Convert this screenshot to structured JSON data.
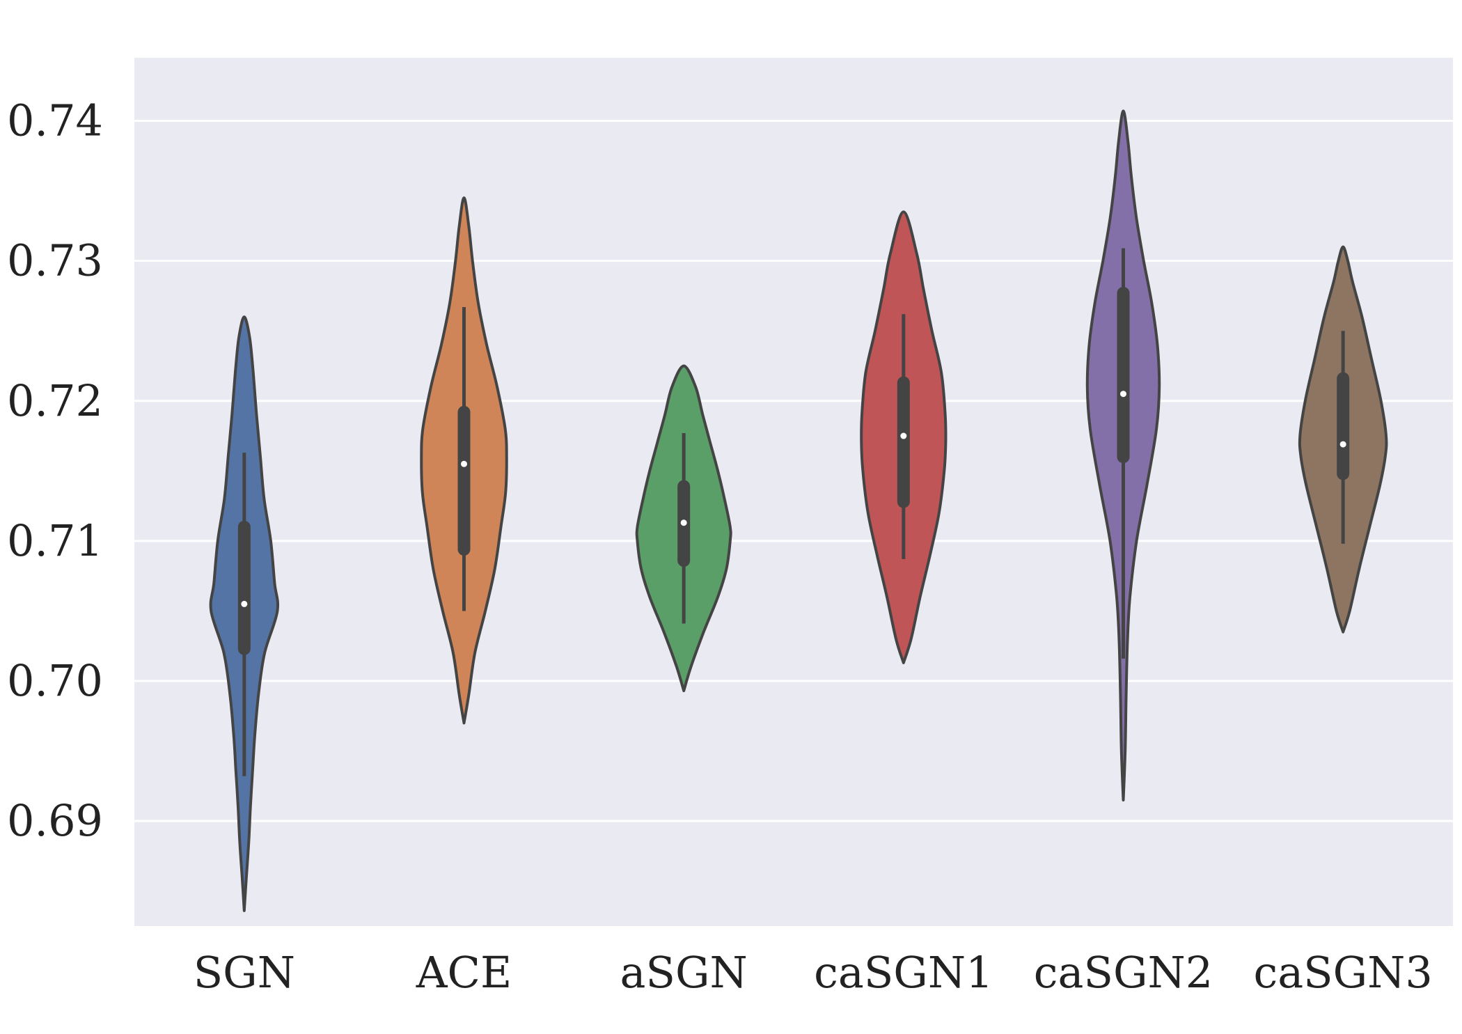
{
  "chart_data": {
    "type": "violin",
    "title": "",
    "xlabel": "",
    "ylabel": "",
    "ylim": [
      0.6825,
      0.7445
    ],
    "grid": true,
    "yticks": [
      {
        "value": 0.69,
        "label": "0.69"
      },
      {
        "value": 0.7,
        "label": "0.70"
      },
      {
        "value": 0.71,
        "label": "0.71"
      },
      {
        "value": 0.72,
        "label": "0.72"
      },
      {
        "value": 0.73,
        "label": "0.73"
      },
      {
        "value": 0.74,
        "label": "0.74"
      }
    ],
    "categories": [
      "SGN",
      "ACE",
      "aSGN",
      "caSGN1",
      "caSGN2",
      "caSGN3"
    ],
    "colors": [
      "#5574a6",
      "#cf8557",
      "#5a9e68",
      "#c05558",
      "#8470a8",
      "#8d7562"
    ],
    "series": [
      {
        "name": "SGN",
        "whisker": [
          0.6932,
          0.7163
        ],
        "box": [
          0.7023,
          0.711
        ],
        "median": 0.7055,
        "density": [
          [
            0.6836,
            0.0
          ],
          [
            0.686,
            0.045
          ],
          [
            0.6885,
            0.095
          ],
          [
            0.691,
            0.13
          ],
          [
            0.6935,
            0.175
          ],
          [
            0.696,
            0.22
          ],
          [
            0.699,
            0.3
          ],
          [
            0.702,
            0.43
          ],
          [
            0.705,
            0.7
          ],
          [
            0.707,
            0.64
          ],
          [
            0.71,
            0.56
          ],
          [
            0.713,
            0.42
          ],
          [
            0.716,
            0.34
          ],
          [
            0.719,
            0.26
          ],
          [
            0.722,
            0.19
          ],
          [
            0.7245,
            0.115
          ],
          [
            0.726,
            0.0
          ]
        ]
      },
      {
        "name": "ACE",
        "whisker": [
          0.705,
          0.7267
        ],
        "box": [
          0.7094,
          0.7192
        ],
        "median": 0.7155,
        "density": [
          [
            0.697,
            0.0
          ],
          [
            0.699,
            0.1
          ],
          [
            0.702,
            0.23
          ],
          [
            0.705,
            0.45
          ],
          [
            0.708,
            0.65
          ],
          [
            0.711,
            0.78
          ],
          [
            0.7135,
            0.88
          ],
          [
            0.716,
            0.9
          ],
          [
            0.718,
            0.87
          ],
          [
            0.721,
            0.7
          ],
          [
            0.724,
            0.48
          ],
          [
            0.727,
            0.3
          ],
          [
            0.73,
            0.18
          ],
          [
            0.7325,
            0.1
          ],
          [
            0.7345,
            0.0
          ]
        ]
      },
      {
        "name": "aSGN",
        "whisker": [
          0.7041,
          0.7177
        ],
        "box": [
          0.7086,
          0.7139
        ],
        "median": 0.7113,
        "density": [
          [
            0.6993,
            0.0
          ],
          [
            0.701,
            0.15
          ],
          [
            0.7035,
            0.42
          ],
          [
            0.706,
            0.72
          ],
          [
            0.708,
            0.9
          ],
          [
            0.71,
            0.98
          ],
          [
            0.711,
            0.98
          ],
          [
            0.713,
            0.86
          ],
          [
            0.715,
            0.72
          ],
          [
            0.717,
            0.56
          ],
          [
            0.719,
            0.4
          ],
          [
            0.721,
            0.25
          ],
          [
            0.7225,
            0.0
          ]
        ]
      },
      {
        "name": "caSGN1",
        "whisker": [
          0.7087,
          0.7262
        ],
        "box": [
          0.7128,
          0.7213
        ],
        "median": 0.7175,
        "density": [
          [
            0.7013,
            0.0
          ],
          [
            0.703,
            0.16
          ],
          [
            0.706,
            0.35
          ],
          [
            0.709,
            0.56
          ],
          [
            0.712,
            0.75
          ],
          [
            0.715,
            0.86
          ],
          [
            0.717,
            0.89
          ],
          [
            0.719,
            0.88
          ],
          [
            0.722,
            0.8
          ],
          [
            0.725,
            0.6
          ],
          [
            0.728,
            0.42
          ],
          [
            0.7305,
            0.28
          ],
          [
            0.7335,
            0.0
          ]
        ]
      },
      {
        "name": "caSGN2",
        "whisker": [
          0.7016,
          0.7309
        ],
        "box": [
          0.716,
          0.7277
        ],
        "median": 0.7205,
        "density": [
          [
            0.6915,
            0.0
          ],
          [
            0.695,
            0.04
          ],
          [
            0.699,
            0.06
          ],
          [
            0.703,
            0.09
          ],
          [
            0.706,
            0.14
          ],
          [
            0.71,
            0.28
          ],
          [
            0.714,
            0.5
          ],
          [
            0.718,
            0.7
          ],
          [
            0.721,
            0.76
          ],
          [
            0.724,
            0.72
          ],
          [
            0.727,
            0.6
          ],
          [
            0.73,
            0.43
          ],
          [
            0.733,
            0.28
          ],
          [
            0.736,
            0.17
          ],
          [
            0.7385,
            0.1
          ],
          [
            0.7407,
            0.0
          ]
        ]
      },
      {
        "name": "caSGN3",
        "whisker": [
          0.7098,
          0.725
        ],
        "box": [
          0.7148,
          0.7216
        ],
        "median": 0.7169,
        "density": [
          [
            0.7035,
            0.0
          ],
          [
            0.705,
            0.14
          ],
          [
            0.708,
            0.34
          ],
          [
            0.711,
            0.56
          ],
          [
            0.714,
            0.78
          ],
          [
            0.716,
            0.89
          ],
          [
            0.7175,
            0.91
          ],
          [
            0.72,
            0.8
          ],
          [
            0.723,
            0.6
          ],
          [
            0.726,
            0.4
          ],
          [
            0.7285,
            0.2
          ],
          [
            0.73,
            0.1
          ],
          [
            0.731,
            0.0
          ]
        ]
      }
    ]
  }
}
